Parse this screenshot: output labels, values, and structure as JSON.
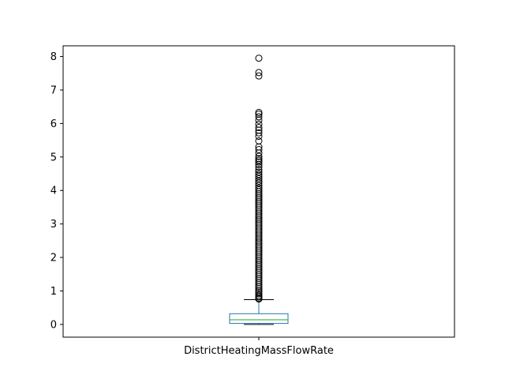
{
  "chart_data": {
    "type": "box",
    "title": "",
    "xlabel": "",
    "ylabel": "",
    "categories": [
      "DistrictHeatingMassFlowRate"
    ],
    "ylim": [
      -0.38,
      8.32
    ],
    "yticks": [
      0,
      1,
      2,
      3,
      4,
      5,
      6,
      7,
      8
    ],
    "grid": false,
    "box": {
      "whisker_low": 0.0,
      "q1": 0.03,
      "median": 0.14,
      "q3": 0.32,
      "whisker_high": 0.74
    },
    "outliers": [
      7.95,
      7.52,
      7.42,
      6.33,
      6.28,
      6.2,
      6.1,
      5.98,
      5.88,
      5.8,
      5.72,
      5.62,
      5.48,
      5.3,
      5.22,
      5.12,
      5.02,
      4.95,
      4.9,
      4.85,
      4.78,
      4.7,
      4.62,
      4.55,
      4.48,
      4.42,
      4.35,
      4.28,
      4.22,
      4.15,
      4.08,
      4.02,
      3.96,
      3.9,
      3.84,
      3.78,
      3.72,
      3.66,
      3.6,
      3.54,
      3.48,
      3.42,
      3.36,
      3.3,
      3.24,
      3.18,
      3.12,
      3.06,
      3.0,
      2.94,
      2.88,
      2.82,
      2.76,
      2.7,
      2.64,
      2.58,
      2.52,
      2.46,
      2.4,
      2.34,
      2.28,
      2.22,
      2.16,
      2.1,
      2.04,
      1.98,
      1.92,
      1.86,
      1.8,
      1.74,
      1.68,
      1.62,
      1.56,
      1.5,
      1.44,
      1.38,
      1.32,
      1.26,
      1.2,
      1.14,
      1.08,
      1.02,
      0.97,
      0.92,
      0.87,
      0.83,
      0.79,
      0.76
    ],
    "colors": {
      "box": "#1f77b4",
      "median": "#2ca02c",
      "whisker": "#000000",
      "outlier": "#000000"
    }
  }
}
